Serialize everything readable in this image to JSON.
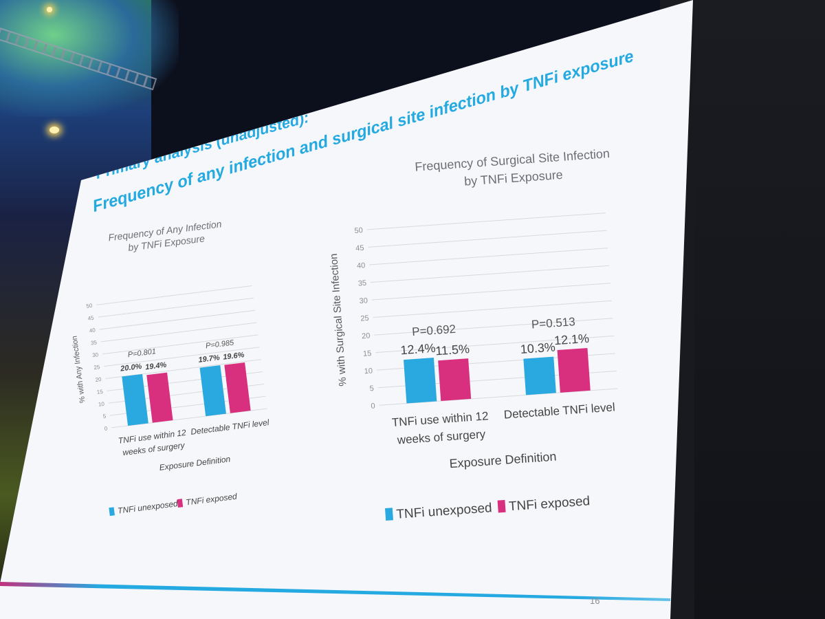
{
  "slide": {
    "title_line1": "Primary analysis (unadjusted):",
    "title_line2": "Frequency of any infection and surgical site infection by TNFi exposure",
    "slide_number": "16"
  },
  "colors": {
    "title_blue": "#24a9e1",
    "tnfi_unexposed": "#29a9e0",
    "tnfi_exposed": "#d8307f",
    "gridline": "#d7d9de",
    "axis_text": "#6b6e76"
  },
  "chart_data": [
    {
      "type": "bar",
      "title": "Frequency of Any Infection by TNFi Exposure",
      "title_lines": [
        "Frequency of Any Infection",
        "by TNFi Exposure"
      ],
      "xlabel": "Exposure Definition",
      "ylabel": "% with Any Infection",
      "ylim": [
        0,
        50
      ],
      "yticks": [
        0,
        5,
        10,
        15,
        20,
        25,
        30,
        35,
        40,
        45,
        50
      ],
      "grid": true,
      "categories": [
        "TNFi use within 12 weeks of surgery",
        "Detectable TNFi level"
      ],
      "category_lines": [
        [
          "TNFi use within 12",
          "weeks of surgery"
        ],
        [
          "Detectable TNFi level"
        ]
      ],
      "series": [
        {
          "name": "TNFi unexposed",
          "values": [
            20.0,
            19.7
          ]
        },
        {
          "name": "TNFi exposed",
          "values": [
            19.4,
            19.6
          ]
        }
      ],
      "data_labels": [
        [
          "20.0%",
          "19.4%"
        ],
        [
          "19.7%",
          "19.6%"
        ]
      ],
      "p_values": [
        "P=0.801",
        "P=0.985"
      ],
      "legend": "bottom"
    },
    {
      "type": "bar",
      "title": "Frequency of Surgical Site Infection by TNFi Exposure",
      "title_lines": [
        "Frequency of Surgical Site Infection",
        "by TNFi Exposure"
      ],
      "xlabel": "Exposure Definition",
      "ylabel": "% with Surgical Site Infection",
      "ylim": [
        0,
        50
      ],
      "yticks": [
        0,
        5,
        10,
        15,
        20,
        25,
        30,
        35,
        40,
        45,
        50
      ],
      "grid": true,
      "categories": [
        "TNFi use within 12 weeks of surgery",
        "Detectable TNFi level"
      ],
      "category_lines": [
        [
          "TNFi use within 12",
          "weeks of surgery"
        ],
        [
          "Detectable TNFi level"
        ]
      ],
      "series": [
        {
          "name": "TNFi unexposed",
          "values": [
            12.4,
            10.3
          ]
        },
        {
          "name": "TNFi exposed",
          "values": [
            11.5,
            12.1
          ]
        }
      ],
      "data_labels": [
        [
          "12.4%",
          "11.5%"
        ],
        [
          "10.3%",
          "12.1%"
        ]
      ],
      "p_values": [
        "P=0.692",
        "P=0.513"
      ],
      "legend": "bottom"
    }
  ]
}
